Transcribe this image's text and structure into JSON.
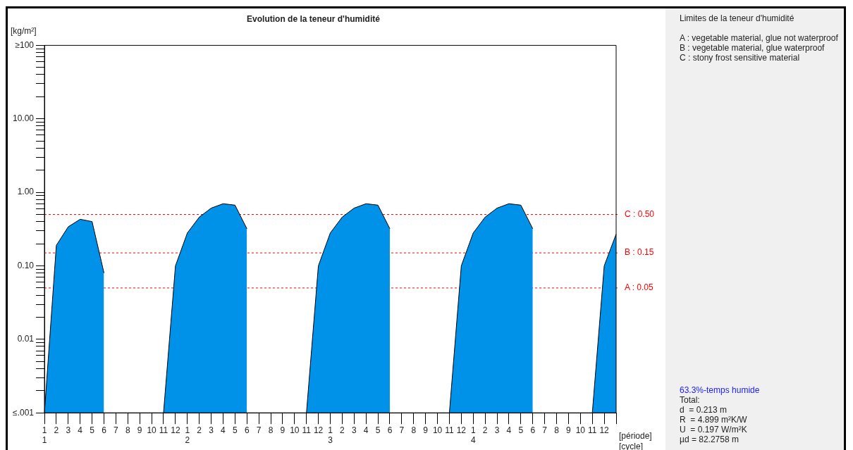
{
  "chart_data": {
    "type": "area",
    "title": "Evolution de la teneur d'humidité",
    "xlabel": "[période]\n[cycle]",
    "ylabel": "[kg/m²]",
    "log": "y",
    "grid": false,
    "legend": false,
    "categories": [
      "1\n1",
      "2",
      "3",
      "4",
      "5",
      "6",
      "7",
      "8",
      "9",
      "10",
      "11",
      "12",
      "1\n2",
      "2",
      "3",
      "4",
      "5",
      "6",
      "7",
      "8",
      "9",
      "10",
      "11",
      "12",
      "1\n3",
      "2",
      "3",
      "4",
      "5",
      "6",
      "7",
      "8",
      "9",
      "10",
      "11",
      "12",
      "1\n4",
      "2",
      "3",
      "4",
      "5",
      "6",
      "7",
      "8",
      "9",
      "10",
      "11",
      "12",
      null
    ],
    "ylim": [
      0.001,
      100
    ],
    "yticks": [
      {
        "value": 0.001,
        "label": "≤.001"
      },
      {
        "value": 0.002,
        "label": null
      },
      {
        "value": 0.003,
        "label": null
      },
      {
        "value": 0.004,
        "label": null
      },
      {
        "value": 0.005,
        "label": null
      },
      {
        "value": 0.006,
        "label": null
      },
      {
        "value": 0.007,
        "label": null
      },
      {
        "value": 0.008,
        "label": null
      },
      {
        "value": 0.009,
        "label": null
      },
      {
        "value": 0.01,
        "label": "0.01"
      },
      {
        "value": 0.02,
        "label": null
      },
      {
        "value": 0.03,
        "label": null
      },
      {
        "value": 0.04,
        "label": null
      },
      {
        "value": 0.05,
        "label": null
      },
      {
        "value": 0.06,
        "label": null
      },
      {
        "value": 0.07,
        "label": null
      },
      {
        "value": 0.08,
        "label": null
      },
      {
        "value": 0.09,
        "label": null
      },
      {
        "value": 0.1,
        "label": "0.10"
      },
      {
        "value": 0.2,
        "label": null
      },
      {
        "value": 0.3,
        "label": null
      },
      {
        "value": 0.4,
        "label": null
      },
      {
        "value": 0.5,
        "label": null
      },
      {
        "value": 0.6,
        "label": null
      },
      {
        "value": 0.7,
        "label": null
      },
      {
        "value": 0.8,
        "label": null
      },
      {
        "value": 0.9,
        "label": null
      },
      {
        "value": 1,
        "label": "1.00"
      },
      {
        "value": 2,
        "label": null
      },
      {
        "value": 3,
        "label": null
      },
      {
        "value": 4,
        "label": null
      },
      {
        "value": 5,
        "label": null
      },
      {
        "value": 6,
        "label": null
      },
      {
        "value": 7,
        "label": null
      },
      {
        "value": 8,
        "label": null
      },
      {
        "value": 9,
        "label": null
      },
      {
        "value": 10,
        "label": "10.00"
      },
      {
        "value": 20,
        "label": null
      },
      {
        "value": 30,
        "label": null
      },
      {
        "value": 40,
        "label": null
      },
      {
        "value": 50,
        "label": null
      },
      {
        "value": 60,
        "label": null
      },
      {
        "value": 70,
        "label": null
      },
      {
        "value": 80,
        "label": null
      },
      {
        "value": 90,
        "label": null
      },
      {
        "value": 100,
        "label": "≥100"
      }
    ],
    "series": [
      {
        "color": "#0092e8",
        "values": [
          0.001,
          0.19,
          0.34,
          0.43,
          0.4,
          0.08,
          null,
          null,
          null,
          null,
          0.001,
          0.1,
          0.28,
          0.46,
          0.61,
          0.7,
          0.67,
          0.32,
          null,
          null,
          null,
          null,
          0.001,
          0.1,
          0.28,
          0.46,
          0.61,
          0.7,
          0.67,
          0.32,
          null,
          null,
          null,
          null,
          0.001,
          0.1,
          0.28,
          0.46,
          0.61,
          0.7,
          0.67,
          0.32,
          null,
          null,
          null,
          null,
          0.001,
          0.1,
          0.27
        ]
      }
    ],
    "ref_lines": [
      {
        "axis": "y",
        "value": 0.5,
        "label": "C : 0.50",
        "color": "#ff0000",
        "line_style": "dashed"
      },
      {
        "axis": "y",
        "value": 0.15,
        "label": "B : 0.15",
        "color": "#ff0000",
        "line_style": "dashed"
      },
      {
        "axis": "y",
        "value": 0.05,
        "label": "A : 0.05",
        "color": "#ff0000",
        "line_style": "dashed"
      }
    ],
    "annotations": [
      "Limites de la teneur d'humidité",
      "A : vegetable material, glue not waterproof",
      "B : vegetable material, glue waterproof",
      "C : stony frost sensitive material",
      "63.3%-temps humide",
      "Total:",
      "d  = 0.213 m",
      "R  = 4.899 m²K/W",
      "U  = 0.197 W/m²K",
      "µd = 82.2758 m"
    ]
  }
}
